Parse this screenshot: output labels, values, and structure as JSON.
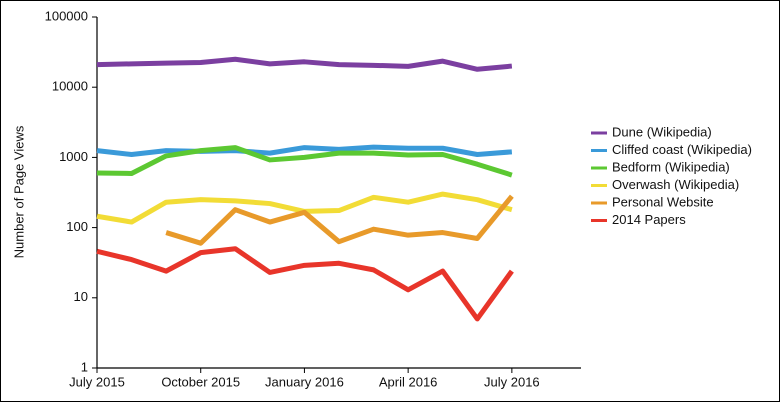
{
  "chart_data": {
    "type": "line",
    "y_label": "Number of Page Views",
    "categories": [
      "July 2015",
      null,
      null,
      "October 2015",
      null,
      null,
      "January 2016",
      null,
      null,
      "April 2016",
      null,
      null,
      "July 2016",
      null,
      null
    ],
    "ylim": [
      1,
      100000
    ],
    "yticks": [
      1,
      10,
      100,
      1000,
      10000,
      100000
    ],
    "log_scale": true,
    "grid": false,
    "legend": "right",
    "series": [
      {
        "name": "Dune (Wikipedia)",
        "color": "#7b3fa0",
        "values": [
          21000,
          21500,
          22000,
          22500,
          25000,
          21500,
          23000,
          21000,
          20500,
          19800,
          23500,
          18000,
          20000,
          null,
          null
        ]
      },
      {
        "name": "Cliffed coast (Wikipedia)",
        "color": "#3a9ad9",
        "values": [
          1250,
          1100,
          1250,
          1220,
          1250,
          1150,
          1380,
          1300,
          1400,
          1350,
          1350,
          1100,
          1200,
          null,
          null
        ]
      },
      {
        "name": "Bedform (Wikipedia)",
        "color": "#5cc832",
        "values": [
          600,
          590,
          1050,
          1250,
          1380,
          920,
          1000,
          1150,
          1150,
          1080,
          1100,
          800,
          560,
          null,
          null
        ]
      },
      {
        "name": "Overwash (Wikipedia)",
        "color": "#f2dc36",
        "values": [
          145,
          120,
          230,
          250,
          240,
          220,
          170,
          175,
          270,
          230,
          300,
          250,
          180,
          null,
          null
        ]
      },
      {
        "name": "Personal Website",
        "color": "#e89a2a",
        "values": [
          null,
          null,
          85,
          60,
          180,
          120,
          165,
          63,
          95,
          78,
          85,
          70,
          280,
          null,
          null
        ]
      },
      {
        "name": "2014 Papers",
        "color": "#e8352a",
        "values": [
          46,
          35,
          24,
          44,
          50,
          23,
          29,
          31,
          25,
          13,
          24,
          5,
          24,
          null,
          null
        ]
      }
    ]
  }
}
